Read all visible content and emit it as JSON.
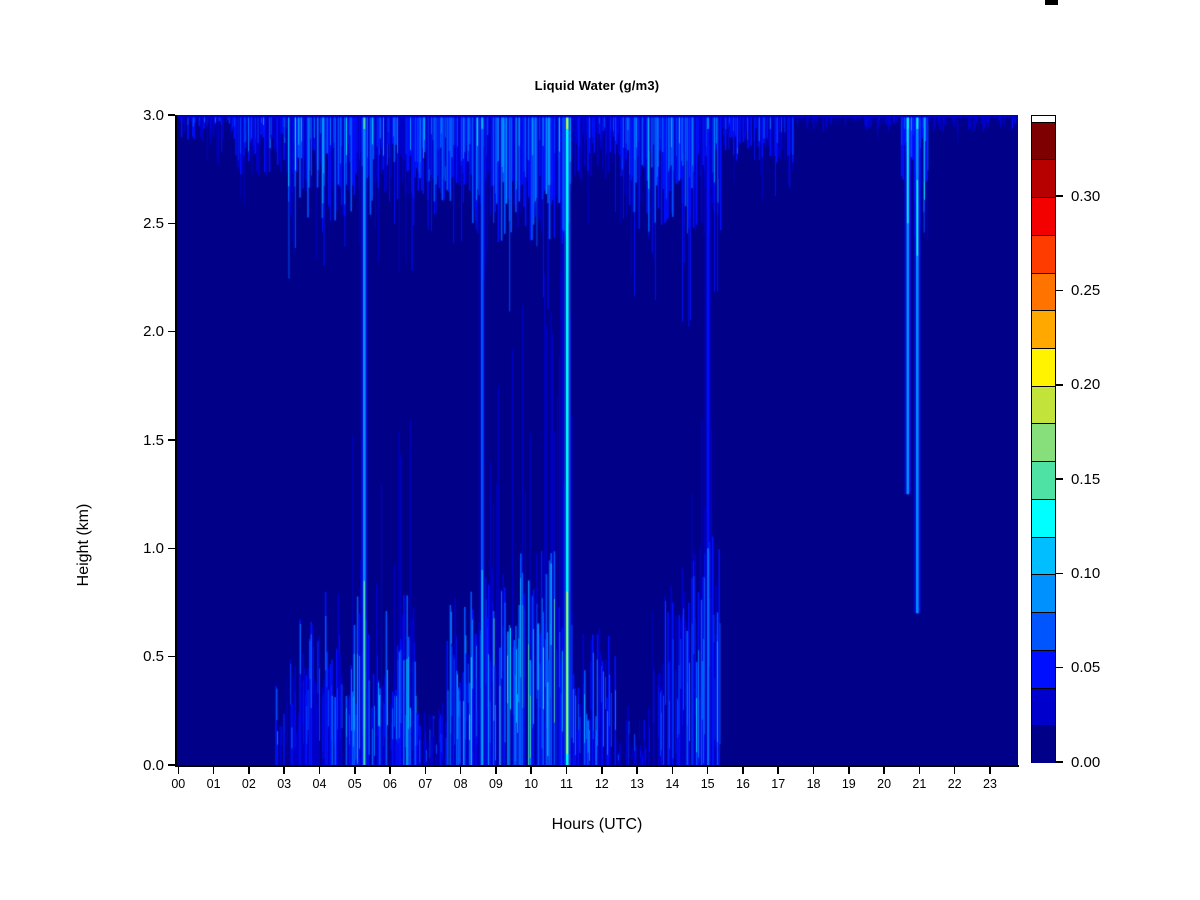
{
  "window": {
    "artifact": "black-corner-mark"
  },
  "chart_data": {
    "type": "heatmap",
    "title": "Liquid Water (g/m3)",
    "xlabel": "Hours (UTC)",
    "ylabel": "Height (km)",
    "x_tick_labels": [
      "00",
      "01",
      "02",
      "03",
      "04",
      "05",
      "06",
      "07",
      "08",
      "09",
      "10",
      "11",
      "12",
      "13",
      "14",
      "15",
      "16",
      "17",
      "18",
      "19",
      "20",
      "21",
      "22",
      "23"
    ],
    "x_tick_values": [
      0,
      1,
      2,
      3,
      4,
      5,
      6,
      7,
      8,
      9,
      10,
      11,
      12,
      13,
      14,
      15,
      16,
      17,
      18,
      19,
      20,
      21,
      22,
      23
    ],
    "x_range_hours": [
      0,
      23.8
    ],
    "y_tick_labels": [
      "0.0",
      "0.5",
      "1.0",
      "1.5",
      "2.0",
      "2.5",
      "3.0"
    ],
    "y_tick_values": [
      0,
      0.5,
      1.0,
      1.5,
      2.0,
      2.5,
      3.0
    ],
    "y_range_km": [
      0,
      3
    ],
    "grid": false,
    "legend_position": "right-colorbar",
    "colorbar": {
      "tick_labels": [
        "0.00",
        "0.05",
        "0.10",
        "0.15",
        "0.20",
        "0.25",
        "0.30"
      ],
      "tick_values": [
        0.0,
        0.05,
        0.1,
        0.15,
        0.2,
        0.25,
        0.3
      ],
      "vmin": 0.0,
      "vmax": 0.343,
      "level_step": 0.02,
      "colors_low_to_high": [
        "#000089",
        "#0000CD",
        "#0010FF",
        "#0055FF",
        "#0091FF",
        "#00BEFF",
        "#00FFFF",
        "#4EE3A4",
        "#86DF7B",
        "#C2E43A",
        "#FFF300",
        "#FFA900",
        "#FF7400",
        "#FF3C00",
        "#F30000",
        "#B70000",
        "#7F0000"
      ]
    },
    "features": {
      "background_value": 0.005,
      "top_edge": {
        "value": 0.028,
        "thickness_px": 2.5
      },
      "cloud_top_bands": [
        {
          "hours": [
            0.0,
            1.6
          ],
          "base_km": [
            2.88,
            2.98
          ],
          "value": 0.034,
          "spike_km": 0.25
        },
        {
          "hours": [
            1.6,
            3.1
          ],
          "base_km": [
            2.72,
            2.92
          ],
          "value": 0.04,
          "spike_km": 0.35
        },
        {
          "hours": [
            3.1,
            5.6
          ],
          "base_km": [
            2.5,
            2.85
          ],
          "value": 0.05,
          "spike_km": 0.45
        },
        {
          "hours": [
            5.6,
            7.6
          ],
          "base_km": [
            2.6,
            2.88
          ],
          "value": 0.045,
          "spike_km": 0.4
        },
        {
          "hours": [
            7.6,
            8.8
          ],
          "base_km": [
            2.5,
            2.8
          ],
          "value": 0.05,
          "spike_km": 0.45
        },
        {
          "hours": [
            8.8,
            11.1
          ],
          "base_km": [
            2.4,
            2.72
          ],
          "value": 0.055,
          "spike_km": 0.5
        },
        {
          "hours": [
            11.1,
            12.7
          ],
          "base_km": [
            2.7,
            2.93
          ],
          "value": 0.04,
          "spike_km": 0.3
        },
        {
          "hours": [
            12.7,
            15.4
          ],
          "base_km": [
            2.45,
            2.85
          ],
          "value": 0.05,
          "spike_km": 0.55
        },
        {
          "hours": [
            15.4,
            17.4
          ],
          "base_km": [
            2.78,
            2.95
          ],
          "value": 0.035,
          "spike_km": 0.2
        },
        {
          "hours": [
            17.4,
            20.45
          ],
          "base_km": [
            2.92,
            2.985
          ],
          "value": 0.02,
          "spike_km": 0.05
        },
        {
          "hours": [
            20.45,
            21.25
          ],
          "base_km": [
            2.55,
            2.9
          ],
          "value": 0.05,
          "spike_km": 0.3
        },
        {
          "hours": [
            21.25,
            23.8
          ],
          "base_km": [
            2.92,
            2.985
          ],
          "value": 0.02,
          "spike_km": 0.05
        }
      ],
      "surface_bands": [
        {
          "hours": [
            2.75,
            3.4
          ],
          "top_km": [
            0.15,
            0.55
          ],
          "value": 0.035
        },
        {
          "hours": [
            3.4,
            4.85
          ],
          "top_km": [
            0.25,
            0.8
          ],
          "value": 0.045
        },
        {
          "hours": [
            4.85,
            6.7
          ],
          "top_km": [
            0.25,
            0.85
          ],
          "value": 0.05
        },
        {
          "hours": [
            6.7,
            7.6
          ],
          "top_km": [
            0.08,
            0.3
          ],
          "value": 0.03
        },
        {
          "hours": [
            7.6,
            8.75
          ],
          "top_km": [
            0.35,
            0.9
          ],
          "value": 0.05
        },
        {
          "hours": [
            8.75,
            11.15
          ],
          "top_km": [
            0.45,
            1.0
          ],
          "value": 0.055
        },
        {
          "hours": [
            11.15,
            12.4
          ],
          "top_km": [
            0.15,
            0.65
          ],
          "value": 0.045
        },
        {
          "hours": [
            12.4,
            13.25
          ],
          "top_km": [
            0.05,
            0.3
          ],
          "value": 0.025
        },
        {
          "hours": [
            13.3,
            14.25
          ],
          "top_km": [
            0.25,
            0.85
          ],
          "value": 0.03
        },
        {
          "hours": [
            14.25,
            15.35
          ],
          "top_km": [
            0.45,
            1.1
          ],
          "value": 0.05
        }
      ],
      "faint_columns": [
        {
          "hours": [
            8.8,
            11.15
          ],
          "top_km": [
            1.2,
            2.4
          ],
          "value": 0.022,
          "density": 0.35
        },
        {
          "hours": [
            4.9,
            6.6
          ],
          "top_km": [
            0.9,
            1.6
          ],
          "value": 0.02,
          "density": 0.25
        },
        {
          "hours": [
            14.3,
            15.3
          ],
          "top_km": [
            0.9,
            1.6
          ],
          "value": 0.02,
          "density": 0.3
        }
      ],
      "precip_streaks": [
        {
          "hour": 5.28,
          "top_km": 3.0,
          "bottom_km": 0.0,
          "value": 0.09,
          "core_value": 0.15,
          "core_span_km": [
            0.0,
            0.85
          ]
        },
        {
          "hour": 8.62,
          "top_km": 3.0,
          "bottom_km": 0.0,
          "value": 0.06,
          "core_value": 0.1,
          "core_span_km": [
            0.0,
            0.9
          ]
        },
        {
          "hour": 11.03,
          "top_km": 3.0,
          "bottom_km": 0.0,
          "value": 0.12,
          "core_value": 0.21,
          "core_span_km": [
            0.05,
            0.8
          ]
        },
        {
          "hour": 15.02,
          "top_km": 3.0,
          "bottom_km": 0.0,
          "value": 0.05,
          "core_value": 0.08,
          "core_span_km": [
            0.0,
            1.0
          ]
        },
        {
          "hour": 20.68,
          "top_km": 3.0,
          "bottom_km": 1.25,
          "value": 0.08,
          "core_value": 0.12,
          "core_span_km": [
            2.5,
            3.0
          ]
        },
        {
          "hour": 20.95,
          "top_km": 3.0,
          "bottom_km": 0.7,
          "value": 0.08,
          "core_value": 0.12,
          "core_span_km": [
            2.35,
            2.7
          ]
        }
      ]
    }
  }
}
